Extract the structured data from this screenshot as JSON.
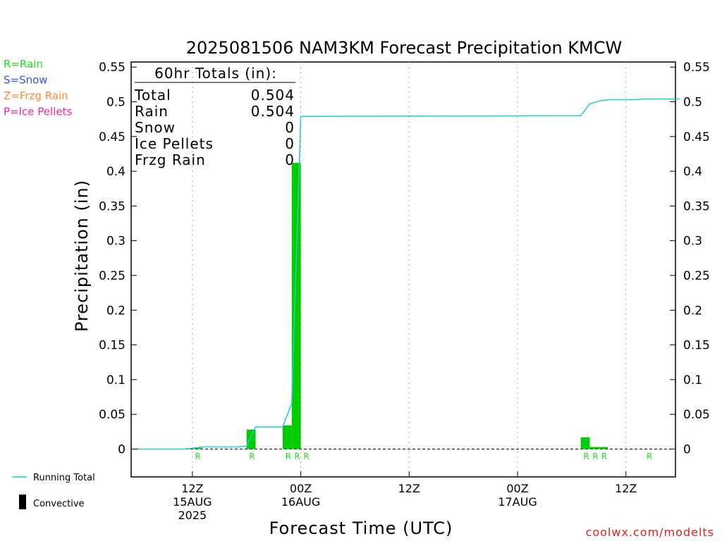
{
  "title": "2025081506 NAM3KM Forecast Precipitation KMCW",
  "legend_types": [
    {
      "label": "R=Rain",
      "color": "#22dd22"
    },
    {
      "label": "S=Snow",
      "color": "#3355ff"
    },
    {
      "label": "Z=Frzg Rain",
      "color": "#ff8833"
    },
    {
      "label": "P=Ice Pellets",
      "color": "#ff2299"
    }
  ],
  "totals": {
    "header": "60hr Totals (in):",
    "rows": [
      {
        "label": "Total",
        "value": "0.504"
      },
      {
        "label": "Rain",
        "value": "0.504"
      },
      {
        "label": "Snow",
        "value": "0"
      },
      {
        "label": "Ice Pellets",
        "value": "0"
      },
      {
        "label": "Frzg Rain",
        "value": "0"
      }
    ]
  },
  "bottom_legend": {
    "running_total": "Running Total",
    "convective": "Convective"
  },
  "credit": "coolwx.com/modelts",
  "colors": {
    "bar": "#00cc00",
    "line": "#22cccc",
    "rain_marker": "#22dd22",
    "credit": "#dd2222",
    "grid": "#aaaaaa"
  },
  "chart_data": {
    "type": "bar",
    "xlabel": "Forecast Time (UTC)",
    "ylabel": "Precipitation (in)",
    "x_units": "forecast hour",
    "xlim": [
      0,
      60
    ],
    "ylim": [
      -0.04,
      0.555
    ],
    "y_ticks": [
      "0",
      "0.05",
      "0.1",
      "0.15",
      "0.2",
      "0.25",
      "0.3",
      "0.35",
      "0.4",
      "0.45",
      "0.5",
      "0.55"
    ],
    "y_tick_values": [
      0,
      0.05,
      0.1,
      0.15,
      0.2,
      0.25,
      0.3,
      0.35,
      0.4,
      0.45,
      0.5,
      0.55
    ],
    "x_ticks": [
      {
        "x": 6,
        "lines": [
          "12Z",
          "15AUG",
          "2025"
        ]
      },
      {
        "x": 18,
        "lines": [
          "00Z",
          "16AUG"
        ]
      },
      {
        "x": 30,
        "lines": [
          "12Z"
        ]
      },
      {
        "x": 42,
        "lines": [
          "00Z",
          "17AUG"
        ]
      },
      {
        "x": 54,
        "lines": [
          "12Z"
        ]
      }
    ],
    "grid_x": [
      6,
      18,
      30,
      42,
      54
    ],
    "series": [
      {
        "kind": "bar",
        "bars": [
          {
            "x0": 6,
            "x1": 7,
            "value": 0.002
          },
          {
            "x0": 12,
            "x1": 13,
            "value": 0.028
          },
          {
            "x0": 16,
            "x1": 17,
            "value": 0.034
          },
          {
            "x0": 17,
            "x1": 18,
            "value": 0.412
          },
          {
            "x0": 49,
            "x1": 50,
            "value": 0.017
          },
          {
            "x0": 50,
            "x1": 52,
            "value": 0.003
          }
        ]
      },
      {
        "kind": "line",
        "points": [
          [
            0,
            0
          ],
          [
            5,
            0
          ],
          [
            6,
            0.001
          ],
          [
            7,
            0.003
          ],
          [
            11,
            0.003
          ],
          [
            12,
            0.004
          ],
          [
            13,
            0.032
          ],
          [
            16,
            0.032
          ],
          [
            17,
            0.066
          ],
          [
            18,
            0.479
          ],
          [
            49,
            0.48
          ],
          [
            50,
            0.497
          ],
          [
            51,
            0.501
          ],
          [
            52,
            0.503
          ],
          [
            55,
            0.503
          ],
          [
            56,
            0.504
          ],
          [
            60,
            0.504
          ]
        ]
      }
    ],
    "markers": [
      {
        "x": 7,
        "label": "R"
      },
      {
        "x": 13,
        "label": "R"
      },
      {
        "x": 17,
        "label": "R"
      },
      {
        "x": 18,
        "label": "R"
      },
      {
        "x": 19,
        "label": "R"
      },
      {
        "x": 50,
        "label": "R"
      },
      {
        "x": 51,
        "label": "R"
      },
      {
        "x": 52,
        "label": "R"
      },
      {
        "x": 57,
        "label": "R"
      }
    ]
  }
}
